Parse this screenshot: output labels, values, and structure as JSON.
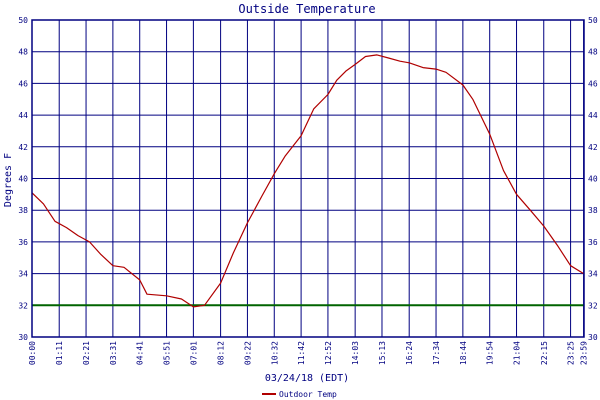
{
  "chart_data": {
    "type": "line",
    "title": "Outside Temperature",
    "xlabel": "03/24/18 (EDT)",
    "ylabel": "Degrees F",
    "ylim": [
      30,
      50
    ],
    "y_ticks": [
      30,
      32,
      34,
      36,
      38,
      40,
      42,
      44,
      46,
      48,
      50
    ],
    "x_range": [
      "00:00",
      "24:00"
    ],
    "x_tick_labels": [
      "00:00",
      "01:11",
      "02:21",
      "03:31",
      "04:41",
      "05:51",
      "07:01",
      "08:12",
      "09:22",
      "10:32",
      "11:42",
      "12:52",
      "14:03",
      "15:13",
      "16:24",
      "17:34",
      "18:44",
      "19:54",
      "21:04",
      "22:15",
      "23:25",
      "23:59"
    ],
    "grid": true,
    "legend_position": "bottom-center",
    "reference_line": {
      "y": 32,
      "color": "#006400"
    },
    "series": [
      {
        "name": "Outdoor Temp",
        "color": "#b00000",
        "points": [
          [
            "00:00",
            39.1
          ],
          [
            "00:30",
            38.4
          ],
          [
            "01:00",
            37.3
          ],
          [
            "01:30",
            36.9
          ],
          [
            "02:00",
            36.4
          ],
          [
            "02:30",
            36.0
          ],
          [
            "03:00",
            35.2
          ],
          [
            "03:31",
            34.5
          ],
          [
            "04:00",
            34.4
          ],
          [
            "04:41",
            33.6
          ],
          [
            "05:00",
            32.7
          ],
          [
            "05:51",
            32.6
          ],
          [
            "06:30",
            32.4
          ],
          [
            "07:01",
            31.9
          ],
          [
            "07:30",
            32.0
          ],
          [
            "08:12",
            33.4
          ],
          [
            "08:45",
            35.3
          ],
          [
            "09:22",
            37.2
          ],
          [
            "10:00",
            38.9
          ],
          [
            "10:32",
            40.3
          ],
          [
            "11:00",
            41.4
          ],
          [
            "11:42",
            42.7
          ],
          [
            "12:15",
            44.4
          ],
          [
            "12:52",
            45.3
          ],
          [
            "13:15",
            46.2
          ],
          [
            "13:40",
            46.8
          ],
          [
            "14:03",
            47.2
          ],
          [
            "14:30",
            47.7
          ],
          [
            "15:00",
            47.8
          ],
          [
            "15:30",
            47.6
          ],
          [
            "16:00",
            47.4
          ],
          [
            "16:24",
            47.3
          ],
          [
            "17:00",
            47.0
          ],
          [
            "17:34",
            46.9
          ],
          [
            "18:00",
            46.7
          ],
          [
            "18:44",
            45.9
          ],
          [
            "19:10",
            45.0
          ],
          [
            "19:54",
            42.8
          ],
          [
            "20:30",
            40.5
          ],
          [
            "21:04",
            39.0
          ],
          [
            "21:40",
            38.0
          ],
          [
            "22:15",
            37.0
          ],
          [
            "22:50",
            35.8
          ],
          [
            "23:25",
            34.5
          ],
          [
            "23:59",
            34.0
          ]
        ]
      }
    ]
  }
}
